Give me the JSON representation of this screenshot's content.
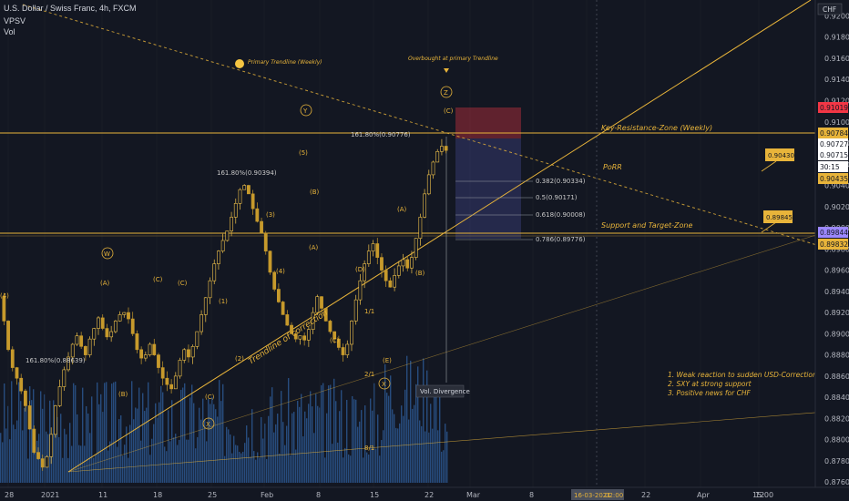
{
  "header": {
    "symbol_line": "U.S. Dollar / Swiss Franc, 4h, FXCM",
    "indicator_1": "VPSV",
    "indicator_2": "Vol"
  },
  "axis": {
    "currency": "CHF",
    "price_ticks": [
      "0.92000",
      "0.91800",
      "0.91600",
      "0.91400",
      "0.91200",
      "0.91000",
      "0.90800",
      "0.90600",
      "0.90400",
      "0.90200",
      "0.90000",
      "0.89800",
      "0.89600",
      "0.89400",
      "0.89200",
      "0.89000",
      "0.88800",
      "0.88600",
      "0.88400",
      "0.88200",
      "0.88000",
      "0.87800",
      "0.87600"
    ],
    "date_ticks": [
      "28",
      "2021",
      "11",
      "18",
      "25",
      "Feb",
      "8",
      "15",
      "22",
      "Mar",
      "8",
      "15",
      "22",
      "Apr",
      "12"
    ],
    "crosshair_date": "16-03-2021",
    "crosshair_time": "02:00",
    "time_tick": "15:00"
  },
  "badges": [
    {
      "text": "0.91019",
      "color": "#f23645"
    },
    {
      "text": "0.90784",
      "color": "#e8b43a"
    },
    {
      "text": "0.90727",
      "color": "#ffffff"
    },
    {
      "text": "0.90715",
      "color": "#ffffff"
    },
    {
      "text": "30:15",
      "color": "#ffffff"
    },
    {
      "text": "0.90435",
      "color": "#e8b43a"
    },
    {
      "text": "0.89844",
      "color": "#9c88ff"
    },
    {
      "text": "0.89832",
      "color": "#e8b43a"
    }
  ],
  "labels": {
    "primary_trendline": "Primary Trendline (Weekly)",
    "overbought": "Overbought at primary Trendline",
    "key_resistance": "Key-Resistance-Zone (Weekly)",
    "porr": "PoRR",
    "support_target": "Support and Target-Zone",
    "trendline_correction": "Trendline of correction",
    "vol_divergence": "Vol. Divergence",
    "callout_1": "0.90430",
    "callout_2": "0.89845",
    "notes": [
      "1. Weak reaction to sudden USD-Correction",
      "2. SXY at strong support",
      "3. Positive news for CHF"
    ],
    "fan_2_1": "2/1",
    "fan_1_1": "1/1",
    "fan_8_1": "8/1"
  },
  "fib_labels": [
    {
      "text": "161.80%(0.90776)"
    },
    {
      "text": "161.80%(0.90394)"
    },
    {
      "text": "161.80%(0.88639)"
    },
    {
      "text": "0.382(0.90334)"
    },
    {
      "text": "0.5(0.90171)"
    },
    {
      "text": "0.618(0.90008)"
    },
    {
      "text": "0.786(0.89776)"
    }
  ],
  "wave_labels": [
    "(5)",
    "(3)",
    "(4)",
    "(B)",
    "(A)",
    "(C)",
    "(1)",
    "(2)",
    "(D)",
    "(E)",
    "(A)",
    "(B)",
    "(C)",
    "(A)",
    "(B)",
    "(C)",
    "(C)",
    "(4)",
    "(C)"
  ],
  "circled_labels": [
    "Z",
    "Y",
    "W",
    "X",
    "X"
  ],
  "chart_data": {
    "type": "candlestick",
    "title": "U.S. Dollar / Swiss Franc, 4h, FXCM",
    "ylim": [
      0.8755,
      0.9215
    ],
    "y_unit": "CHF",
    "x_ticks": [
      "28",
      "2021",
      "11",
      "18",
      "25",
      "Feb",
      "8",
      "15",
      "22",
      "Mar",
      "8",
      "15",
      "22",
      "Apr",
      "12"
    ],
    "key_levels": [
      {
        "name": "Key-Resistance-Zone (Weekly)",
        "value": 0.90784
      },
      {
        "name": "Support and Target-Zone",
        "value": 0.89844
      }
    ],
    "fib_retracements": [
      {
        "level": "0.382",
        "value": 0.90334
      },
      {
        "level": "0.5",
        "value": 0.90171
      },
      {
        "level": "0.618",
        "value": 0.90008
      },
      {
        "level": "0.786",
        "value": 0.89776
      }
    ],
    "price_path": [
      0.8935,
      0.8912,
      0.8885,
      0.8868,
      0.8858,
      0.8846,
      0.8832,
      0.881,
      0.8788,
      0.8782,
      0.8774,
      0.8784,
      0.8805,
      0.8832,
      0.885,
      0.8866,
      0.8878,
      0.889,
      0.8898,
      0.8888,
      0.888,
      0.8895,
      0.8905,
      0.8915,
      0.8905,
      0.8897,
      0.8902,
      0.8912,
      0.8918,
      0.892,
      0.8914,
      0.89,
      0.8885,
      0.8877,
      0.888,
      0.889,
      0.888,
      0.8868,
      0.8858,
      0.8852,
      0.8848,
      0.886,
      0.8875,
      0.8885,
      0.8878,
      0.8888,
      0.8902,
      0.8918,
      0.8934,
      0.895,
      0.8966,
      0.8978,
      0.8988,
      0.8997,
      0.901,
      0.9023,
      0.9036,
      0.904,
      0.9032,
      0.9018,
      0.9006,
      0.8995,
      0.8978,
      0.8958,
      0.8942,
      0.893,
      0.8918,
      0.8908,
      0.89,
      0.8895,
      0.8898,
      0.8894,
      0.8904,
      0.892,
      0.8935,
      0.8924,
      0.8912,
      0.8902,
      0.8895,
      0.8887,
      0.888,
      0.889,
      0.8912,
      0.8932,
      0.895,
      0.8966,
      0.8978,
      0.8985,
      0.8972,
      0.896,
      0.895,
      0.8944,
      0.8955,
      0.8964,
      0.897,
      0.8962,
      0.8972,
      0.899,
      0.901,
      0.9032,
      0.905,
      0.9062,
      0.9072,
      0.9077,
      0.9073
    ]
  }
}
